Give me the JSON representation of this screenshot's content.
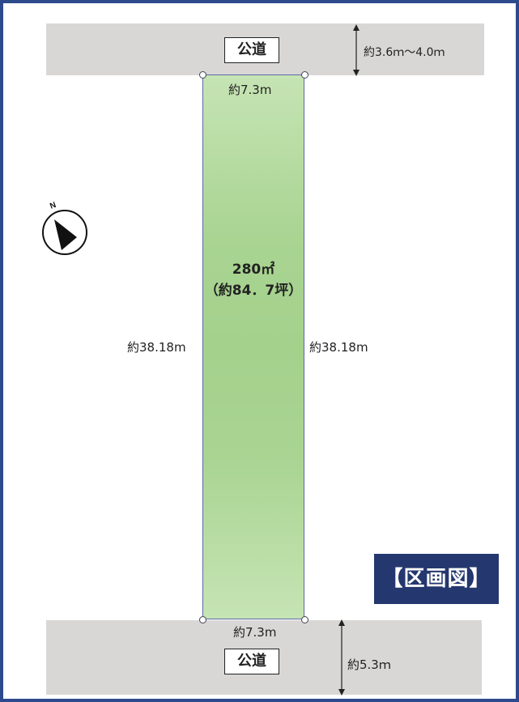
{
  "roads": {
    "top_label": "公道",
    "bottom_label": "公道",
    "top_width": "約3.6ｍ～4.0ｍ",
    "bottom_width": "約5.3ｍ"
  },
  "lot": {
    "area_sqm": "280㎡",
    "area_tsubo": "（約84．7坪）",
    "top_side": "約7.3m",
    "bottom_side": "約7.3m",
    "left_side": "約38.18m",
    "right_side": "約38.18m",
    "fill_color": "#a9d492"
  },
  "compass": {
    "north_label": "N"
  },
  "title": "【区画図】",
  "colors": {
    "frame": "#2c4a8c",
    "road": "#d9d7d6",
    "badge": "#24376e"
  }
}
